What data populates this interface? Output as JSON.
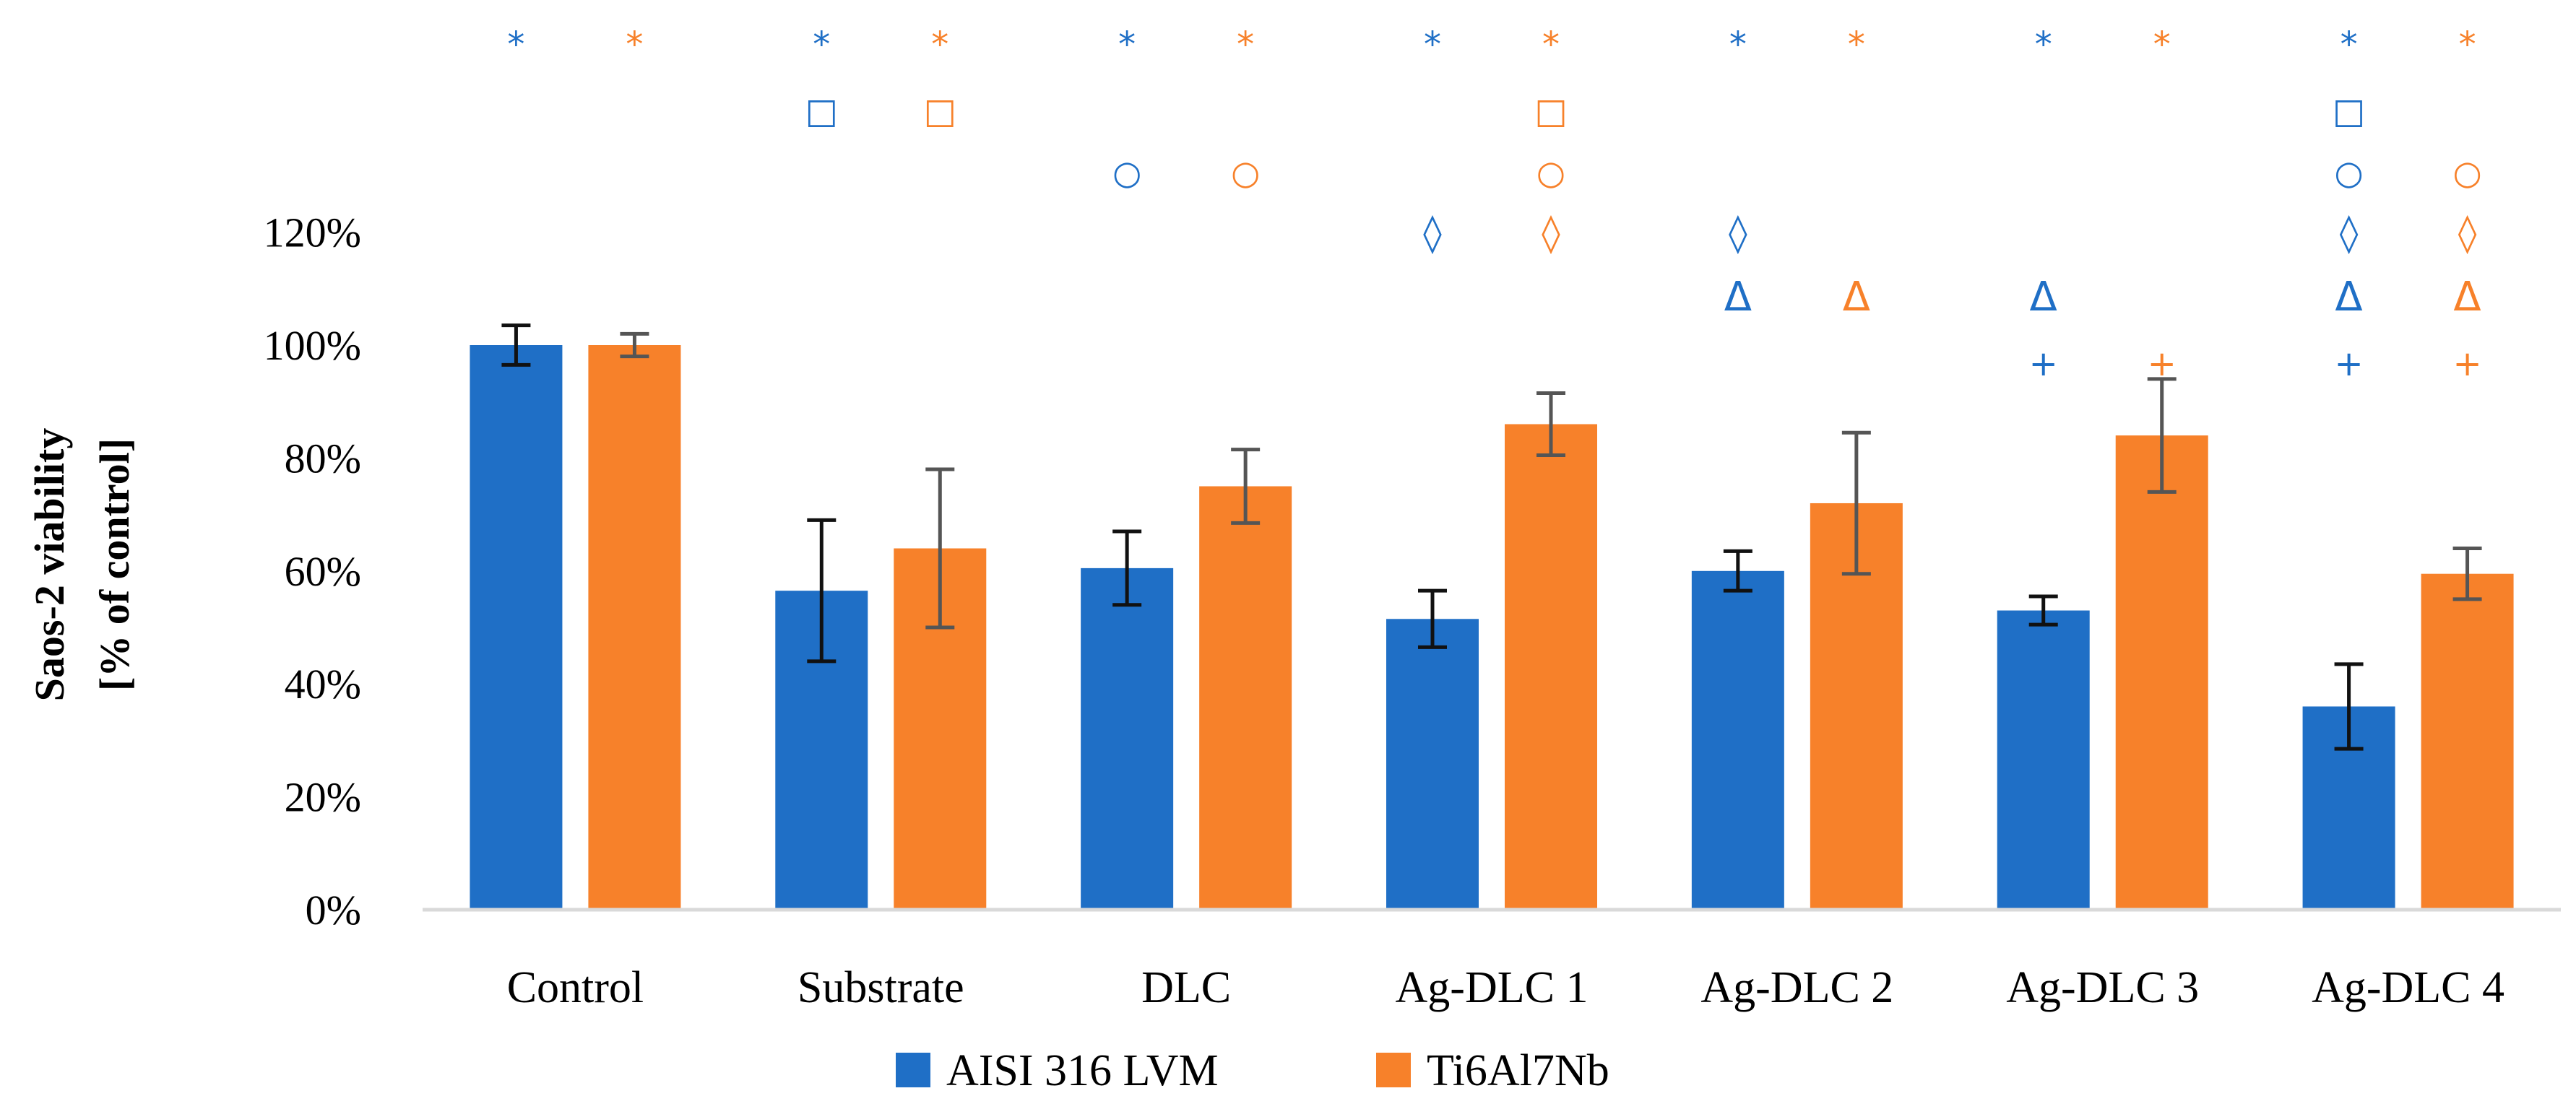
{
  "chart_data": {
    "type": "bar",
    "title": "",
    "ylabel_line1": "Saos-2 viability",
    "ylabel_line2": "[% of control]",
    "xlabel": "",
    "ylim": [
      0,
      120
    ],
    "yticks": [
      0,
      20,
      40,
      60,
      80,
      100,
      120
    ],
    "ytick_labels": [
      "0%",
      "20%",
      "40%",
      "60%",
      "80%",
      "100%",
      "120%"
    ],
    "categories": [
      "Control",
      "Substrate",
      "DLC",
      "Ag-DLC 1",
      "Ag-DLC 2",
      "Ag-DLC 3",
      "Ag-DLC 4"
    ],
    "series": [
      {
        "name": "AISI 316 LVM",
        "color": "#1f6fc6",
        "values": [
          100,
          56.5,
          60.5,
          51.5,
          60,
          53,
          36
        ],
        "errors": [
          3.5,
          12.5,
          6.5,
          5,
          3.5,
          2.5,
          7.5
        ]
      },
      {
        "name": "Ti6Al7Nb",
        "color": "#f7812a",
        "values": [
          100,
          64,
          75,
          86,
          72,
          84,
          59.5
        ],
        "errors": [
          2,
          14,
          6.5,
          5.5,
          12.5,
          10,
          4.5
        ]
      }
    ],
    "legend_position": "bottom",
    "significance": {
      "symbols": [
        "*",
        "□",
        "○",
        "◊",
        "Δ",
        "+"
      ],
      "marks": [
        [
          [
            "*"
          ],
          [
            "*"
          ]
        ],
        [
          [
            "*",
            "□"
          ],
          [
            "*",
            "□"
          ]
        ],
        [
          [
            "*",
            "○"
          ],
          [
            "*",
            "○"
          ]
        ],
        [
          [
            "*",
            "◊"
          ],
          [
            "*",
            "□",
            "○",
            "◊"
          ]
        ],
        [
          [
            "*",
            "◊",
            "Δ"
          ],
          [
            "*",
            "Δ"
          ]
        ],
        [
          [
            "*",
            "Δ",
            "+"
          ],
          [
            "*",
            "+"
          ]
        ],
        [
          [
            "*",
            "□",
            "○",
            "◊",
            "Δ",
            "+"
          ],
          [
            "*",
            "○",
            "◊",
            "Δ",
            "+"
          ]
        ]
      ]
    }
  }
}
